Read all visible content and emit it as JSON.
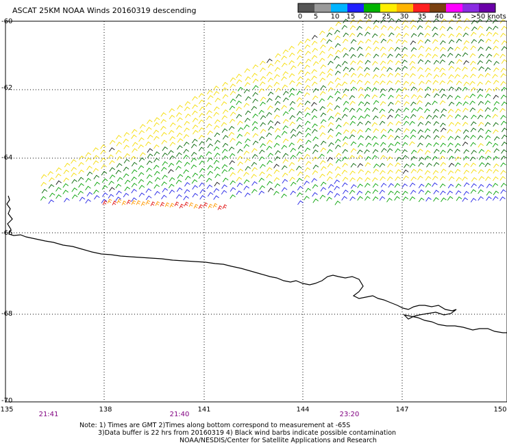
{
  "title": "ASCAT 25KM NOAA Winds 20160319 descending",
  "scale": {
    "labels": [
      "0",
      "5",
      "10",
      "15",
      "20",
      "25",
      "30",
      "35",
      "40",
      "45",
      ">50 knots"
    ],
    "colors": [
      "#555555",
      "#9a9a9a",
      "#00b4ff",
      "#2020ff",
      "#00b400",
      "#ffee00",
      "#ffb400",
      "#ff2020",
      "#7a4010",
      "#ff00ff",
      "#8a2be2",
      "#6a00a8"
    ]
  },
  "lat_labels": [
    "-60",
    "-62",
    "-64",
    "-66",
    "-68",
    "-70"
  ],
  "lon_labels": [
    "135",
    "138",
    "141",
    "144",
    "147",
    "150"
  ],
  "time_labels": [
    "21:41",
    "21:40",
    "23:20"
  ],
  "notes": {
    "line1": "Note: 1) Times are GMT 2)Times along bottom correspond to measurement at -65S",
    "line2": "3)Data buffer is 22 hrs from 20160319 4) Black wind barbs indicate possible contamination",
    "line3": "NOAA/NESDIS/Center for Satellite Applications and Research"
  },
  "colors": {
    "grid": "#000000",
    "coast": "#000000",
    "time_label": "#800080"
  }
}
